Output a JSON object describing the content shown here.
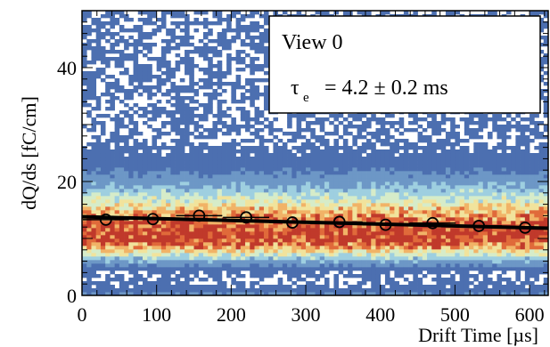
{
  "chart_data": {
    "type": "heatmap",
    "xlabel": "Drift Time [µs]",
    "ylabel": "dQ/ds [fC/cm]",
    "xlim": [
      0,
      625
    ],
    "ylim": [
      0,
      50
    ],
    "x_ticks": [
      0,
      100,
      200,
      300,
      400,
      500,
      600
    ],
    "y_ticks": [
      0,
      20,
      40
    ],
    "grid": false,
    "legend": {
      "placement": "top-right",
      "view_label": "View 0",
      "tau_symbol": "τ",
      "tau_subscript": "e",
      "tau_value": "= 4.2 ± 0.2 ms"
    },
    "heatmap": {
      "description": "2D histogram of dQ/ds versus drift time",
      "band_center_fC_cm": 10.5,
      "band_width_fC_cm": 2.6,
      "colors": [
        "#4c6fb0",
        "#6d97c6",
        "#9ecfe0",
        "#d6ecc9",
        "#f1e39c",
        "#f1b367",
        "#e06a3a",
        "#c0392b"
      ]
    },
    "profile_points": {
      "x": [
        32,
        95,
        157,
        220,
        282,
        345,
        407,
        470,
        532,
        594
      ],
      "y": [
        13.3,
        13.4,
        14.0,
        13.7,
        12.8,
        12.9,
        12.4,
        12.7,
        12.2,
        11.9
      ],
      "xerr": 31
    },
    "fit_line": {
      "x": [
        0,
        625
      ],
      "y": [
        13.8,
        11.8
      ]
    }
  }
}
